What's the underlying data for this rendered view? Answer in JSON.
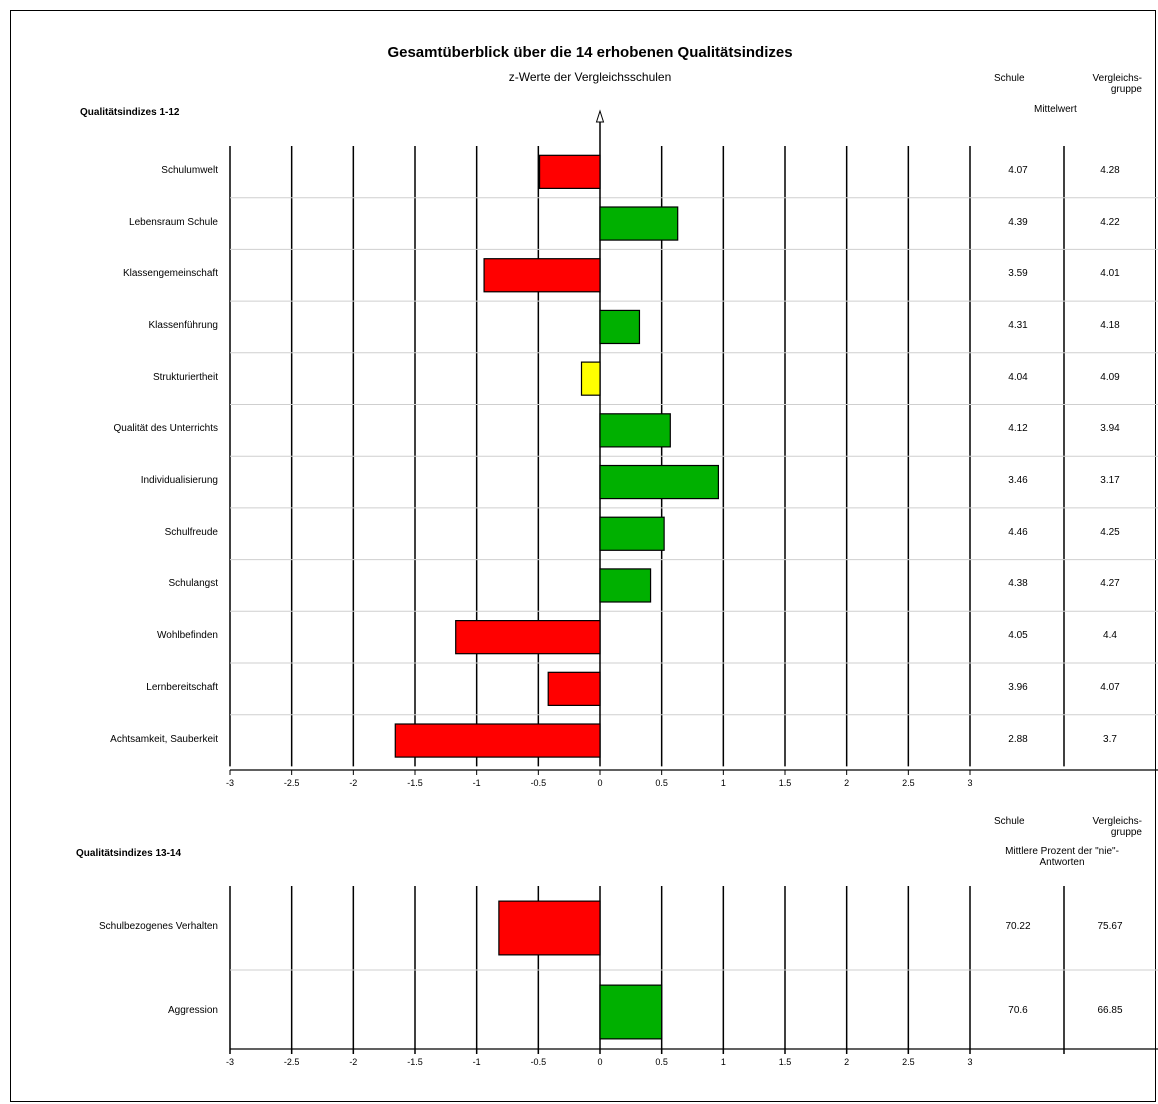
{
  "title": "Gesamtüberblick über die 14 erhobenen Qualitätsindizes",
  "subtitle": "z-Werte der Vergleichsschulen",
  "colors": {
    "positive": "#00b000",
    "negative": "#ff0000",
    "neutral": "#ffff00"
  },
  "chart_data": [
    {
      "type": "bar",
      "orientation": "horizontal",
      "section_label": "Qualitätsindizes 1-12",
      "col_school": "Schule",
      "col_group": "Vergleichs-gruppe",
      "col_caption": "Mittelwert",
      "xlim": [
        -3,
        3
      ],
      "x_ticks": [
        "-3",
        "-2.5",
        "-2",
        "-1.5",
        "-1",
        "-0.5",
        "0",
        "0.5",
        "1",
        "1.5",
        "2",
        "2.5",
        "3"
      ],
      "categories": [
        "Schulumwelt",
        "Lebensraum Schule",
        "Klassengemeinschaft",
        "Klassenführung",
        "Strukturiertheit",
        "Qualität des Unterrichts",
        "Individualisierung",
        "Schulfreude",
        "Schulangst",
        "Wohlbefinden",
        "Lernbereitschaft",
        "Achtsamkeit, Sauberkeit"
      ],
      "values": [
        -0.49,
        0.63,
        -0.94,
        0.32,
        -0.15,
        0.57,
        0.96,
        0.52,
        0.41,
        -1.17,
        -0.42,
        -1.66
      ],
      "bar_colors": [
        "negative",
        "positive",
        "negative",
        "positive",
        "neutral",
        "positive",
        "positive",
        "positive",
        "positive",
        "negative",
        "negative",
        "negative"
      ],
      "school": [
        "4.07",
        "4.39",
        "3.59",
        "4.31",
        "4.04",
        "4.12",
        "3.46",
        "4.46",
        "4.38",
        "4.05",
        "3.96",
        "2.88"
      ],
      "group": [
        "4.28",
        "4.22",
        "4.01",
        "4.18",
        "4.09",
        "3.94",
        "3.17",
        "4.25",
        "4.27",
        "4.4",
        "4.07",
        "3.7"
      ]
    },
    {
      "type": "bar",
      "orientation": "horizontal",
      "section_label": "Qualitätsindizes 13-14",
      "col_school": "Schule",
      "col_group": "Vergleichs-gruppe",
      "col_caption": "Mittlere Prozent der \"nie\"-Antworten",
      "xlim": [
        -3,
        3
      ],
      "x_ticks": [
        "-3",
        "-2.5",
        "-2",
        "-1.5",
        "-1",
        "-0.5",
        "0",
        "0.5",
        "1",
        "1.5",
        "2",
        "2.5",
        "3"
      ],
      "categories": [
        "Schulbezogenes Verhalten",
        "Aggression"
      ],
      "values": [
        -0.82,
        0.5
      ],
      "bar_colors": [
        "negative",
        "positive"
      ],
      "school": [
        "70.22",
        "70.6"
      ],
      "group": [
        "75.67",
        "66.85"
      ]
    }
  ]
}
